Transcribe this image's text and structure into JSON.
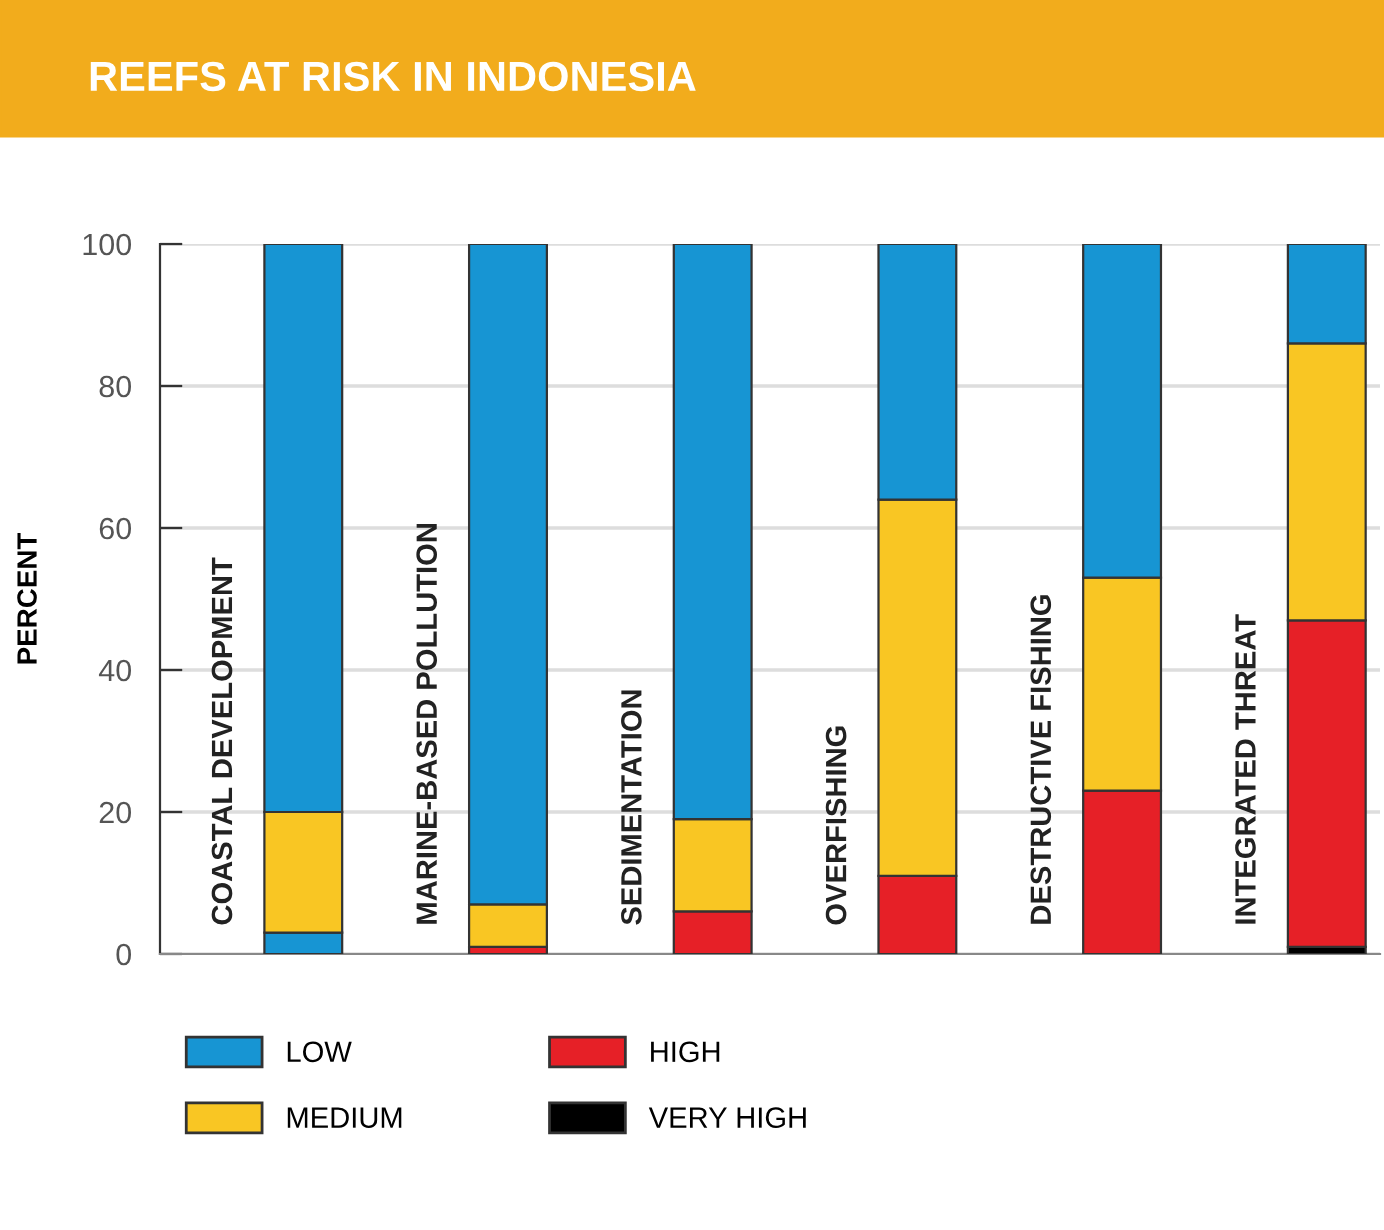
{
  "chart_data": {
    "type": "bar",
    "title": "REEFS AT RISK IN INDONESIA",
    "ylabel": "PERCENT",
    "categories": [
      "COASTAL DEVELOPMENT",
      "MARINE-BASED POLLUTION",
      "SEDIMENTATION",
      "OVERFISHING",
      "DESTRUCTIVE FISHING",
      "INTEGRATED THREAT"
    ],
    "stacked": true,
    "series": [
      {
        "name": "VERY HIGH",
        "color": "#000000",
        "values": [
          0,
          0,
          0,
          0,
          0,
          1
        ]
      },
      {
        "name": "HIGH",
        "color": "#e62027",
        "colors": [
          "#1795d3",
          "#e62027",
          "#e62027",
          "#e62027",
          "#e62027",
          "#e62027"
        ],
        "values": [
          3,
          1,
          6,
          11,
          23,
          46
        ]
      },
      {
        "name": "MEDIUM",
        "color": "#f9c623",
        "values": [
          17,
          6,
          13,
          53,
          30,
          39
        ]
      },
      {
        "name": "LOW",
        "color": "#1795d3",
        "values": [
          80,
          93,
          81,
          36,
          47,
          14
        ]
      }
    ],
    "ylim": [
      0,
      100
    ],
    "yticks": [
      0,
      20,
      40,
      60,
      80,
      100
    ],
    "grid": "y",
    "legend": "bottom"
  }
}
